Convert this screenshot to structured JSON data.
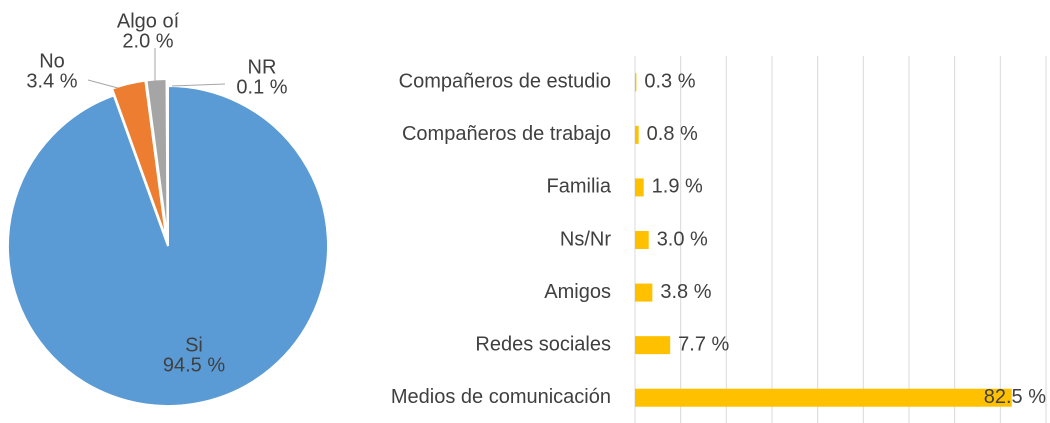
{
  "chart_data": [
    {
      "type": "pie",
      "categories": [
        "Si",
        "No",
        "Algo oí",
        "NR"
      ],
      "values": [
        94.5,
        3.4,
        2.0,
        0.1
      ],
      "value_labels": [
        "94.5 %",
        "3.4 %",
        "2.0 %",
        "0.1 %"
      ],
      "colors": [
        "#5b9bd5",
        "#ed7d31",
        "#a5a5a5",
        "#ffc000"
      ]
    },
    {
      "type": "hbar",
      "categories": [
        "Compañeros de estudio",
        "Compañeros de trabajo",
        "Familia",
        "Ns/Nr",
        "Amigos",
        "Redes sociales",
        "Medios de comunicación"
      ],
      "values": [
        0.3,
        0.8,
        1.9,
        3.0,
        3.8,
        7.7,
        82.5
      ],
      "value_labels": [
        "0.3 %",
        "0.8 %",
        "1.9 %",
        "3.0 %",
        "3.8 %",
        "7.7 %",
        "82.5 %"
      ],
      "color": "#ffc000",
      "xlim": [
        0,
        90
      ],
      "xticks": [
        0,
        10,
        20,
        30,
        40,
        50,
        60,
        70,
        80,
        90
      ],
      "grid": true
    }
  ]
}
